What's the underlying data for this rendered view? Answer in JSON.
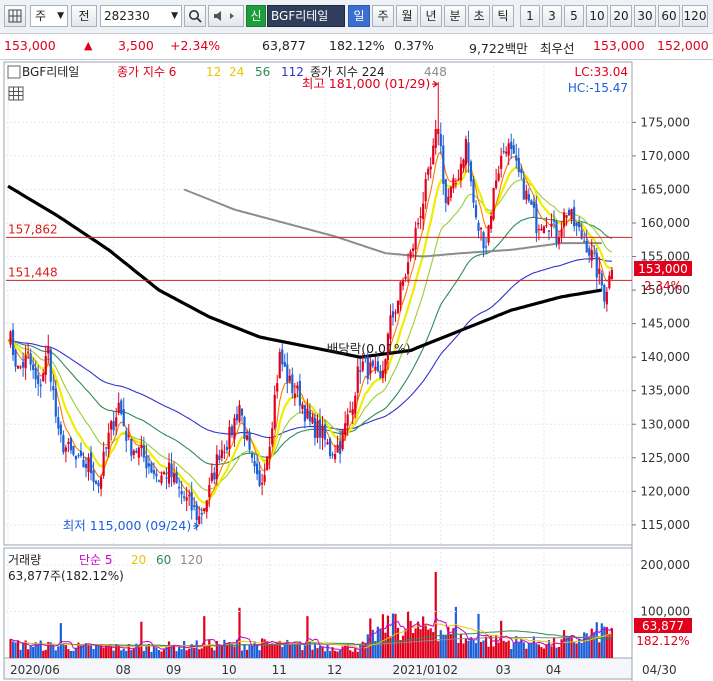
{
  "toolbar": {
    "menu_icon": "grid-icon",
    "market": "주",
    "code_type": "전",
    "code": "282330",
    "new_badge": "신",
    "name": "BGF리테일",
    "period_buttons": [
      "일",
      "주",
      "월",
      "년",
      "분",
      "초",
      "틱"
    ],
    "active_period": "일",
    "interval_buttons": [
      "1",
      "3",
      "5",
      "10",
      "20",
      "30",
      "60",
      "120"
    ]
  },
  "quote": {
    "price": "153,000",
    "change": "3,500",
    "change_pct": "+2.34%",
    "volume": "63,877",
    "volume_ratio": "182.12%",
    "turnover": "0.37%",
    "amount": "9,722백만",
    "priority_label": "최우선",
    "ask": "153,000",
    "bid": "152,000"
  },
  "price_panel": {
    "legend": {
      "name": "BGF리테일",
      "ma_label": "종가 지수 6",
      "ma_periods": [
        "12",
        "24",
        "56",
        "112"
      ],
      "ma2_label": "종가 지수 224",
      "ma2_period": "448"
    },
    "lc": "LC:33.04",
    "hc": "HC:-15.47",
    "high_label": "최고 181,000 (01/29)",
    "low_label": "최저 115,000 (09/24)",
    "dividend_label": "배당락(0.01%)",
    "hline_upper_label": "157,862",
    "hline_lower_label": "151,448",
    "current_price_tag": "153,000",
    "current_pct_tag": "2.34%"
  },
  "volume_panel": {
    "legend_title": "거래량",
    "ma_label": "단순 5",
    "ma_periods": [
      "20",
      "60",
      "120"
    ],
    "info": "63,877주(182.12%)",
    "current_tag": "63,877",
    "current_pct_tag": "182.12%"
  },
  "colors": {
    "up": "#e0001b",
    "down": "#1e5fd8",
    "ma6": "#ff7a00",
    "ma12": "#eeee00",
    "ma24": "#9acd32",
    "ma56": "#2e8b57",
    "ma112": "#3333cc",
    "ma224": "#000000",
    "ma448": "#8c8c8c",
    "hline": "#d42020"
  },
  "chart_data": [
    {
      "type": "candlestick",
      "title": "",
      "y_axis_ticks": [
        115000,
        120000,
        125000,
        130000,
        135000,
        140000,
        145000,
        150000,
        155000,
        160000,
        165000,
        170000,
        175000
      ],
      "ylim": [
        112000,
        184000
      ],
      "x_axis_ticks": [
        "2020/06",
        "08",
        "09",
        "10",
        "11",
        "12",
        "2021/01",
        "02",
        "03",
        "04",
        "04/30"
      ],
      "x_axis_tick_positions": [
        0,
        42,
        62,
        84,
        104,
        126,
        152,
        172,
        193,
        213,
        240
      ],
      "num_days": 240,
      "horizontal_lines": [
        157862,
        151448
      ],
      "annotations": {
        "high": {
          "value": 181000,
          "day": 171,
          "text": "최고 181,000 (01/29)"
        },
        "low": {
          "value": 115000,
          "day": 76,
          "text": "최저 115,000 (09/24)"
        },
        "dividend_day": 137
      },
      "close_keypoints": [
        [
          0,
          144000
        ],
        [
          4,
          138000
        ],
        [
          8,
          140000
        ],
        [
          12,
          135000
        ],
        [
          16,
          141000
        ],
        [
          20,
          128000
        ],
        [
          24,
          126000
        ],
        [
          28,
          124000
        ],
        [
          32,
          124000
        ],
        [
          36,
          121000
        ],
        [
          40,
          128000
        ],
        [
          44,
          133000
        ],
        [
          48,
          127000
        ],
        [
          52,
          126000
        ],
        [
          56,
          124000
        ],
        [
          60,
          122000
        ],
        [
          64,
          123000
        ],
        [
          68,
          120000
        ],
        [
          72,
          118000
        ],
        [
          76,
          116000
        ],
        [
          80,
          120000
        ],
        [
          84,
          126000
        ],
        [
          88,
          128000
        ],
        [
          92,
          133000
        ],
        [
          96,
          125000
        ],
        [
          100,
          120000
        ],
        [
          104,
          128000
        ],
        [
          108,
          140000
        ],
        [
          112,
          136000
        ],
        [
          116,
          134000
        ],
        [
          120,
          130000
        ],
        [
          124,
          129000
        ],
        [
          128,
          126000
        ],
        [
          132,
          127000
        ],
        [
          136,
          132000
        ],
        [
          140,
          139000
        ],
        [
          144,
          138000
        ],
        [
          148,
          136000
        ],
        [
          152,
          145000
        ],
        [
          156,
          150000
        ],
        [
          160,
          155000
        ],
        [
          164,
          162000
        ],
        [
          168,
          168000
        ],
        [
          171,
          175000
        ],
        [
          174,
          163000
        ],
        [
          178,
          166000
        ],
        [
          182,
          172000
        ],
        [
          186,
          160000
        ],
        [
          190,
          157000
        ],
        [
          194,
          167000
        ],
        [
          198,
          172000
        ],
        [
          202,
          168000
        ],
        [
          206,
          164000
        ],
        [
          210,
          160000
        ],
        [
          214,
          161000
        ],
        [
          218,
          158000
        ],
        [
          222,
          162000
        ],
        [
          226,
          159000
        ],
        [
          230,
          157000
        ],
        [
          234,
          153000
        ],
        [
          237,
          149500
        ],
        [
          240,
          153000
        ]
      ],
      "ma_224_keypoints": [
        [
          0,
          165500
        ],
        [
          20,
          161000
        ],
        [
          40,
          156000
        ],
        [
          60,
          150000
        ],
        [
          80,
          146000
        ],
        [
          100,
          143000
        ],
        [
          120,
          141500
        ],
        [
          140,
          140000
        ],
        [
          160,
          141000
        ],
        [
          180,
          144000
        ],
        [
          200,
          147000
        ],
        [
          220,
          149000
        ],
        [
          236,
          150000
        ]
      ],
      "ma_448_keypoints": [
        [
          70,
          165000
        ],
        [
          90,
          162000
        ],
        [
          110,
          160000
        ],
        [
          130,
          158000
        ],
        [
          150,
          155500
        ],
        [
          165,
          155000
        ],
        [
          180,
          155500
        ],
        [
          200,
          156000
        ],
        [
          220,
          157000
        ],
        [
          236,
          157000
        ]
      ]
    },
    {
      "type": "bar",
      "title": "거래량",
      "y_axis_ticks": [
        100000,
        200000
      ],
      "ylim": [
        0,
        215000
      ],
      "volume_keypoints": [
        [
          0,
          30000
        ],
        [
          20,
          25000
        ],
        [
          40,
          22000
        ],
        [
          60,
          24000
        ],
        [
          80,
          28000
        ],
        [
          100,
          30000
        ],
        [
          120,
          26000
        ],
        [
          140,
          22000
        ],
        [
          150,
          70000
        ],
        [
          160,
          60000
        ],
        [
          170,
          65000
        ],
        [
          180,
          40000
        ],
        [
          200,
          35000
        ],
        [
          220,
          30000
        ],
        [
          240,
          63877
        ]
      ],
      "volume_spikes": [
        [
          21,
          75000
        ],
        [
          53,
          78000
        ],
        [
          78,
          90000
        ],
        [
          92,
          108000
        ],
        [
          119,
          90000
        ],
        [
          144,
          85000
        ],
        [
          154,
          95000
        ],
        [
          159,
          100000
        ],
        [
          170,
          185000
        ],
        [
          178,
          110000
        ],
        [
          187,
          95000
        ],
        [
          196,
          80000
        ],
        [
          221,
          60000
        ],
        [
          240,
          63877
        ]
      ]
    }
  ]
}
